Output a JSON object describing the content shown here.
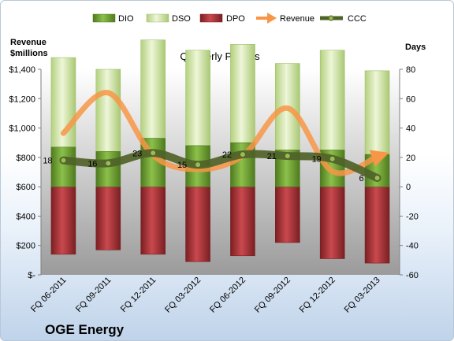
{
  "company": "OGE Energy",
  "chart_data": {
    "type": "bar",
    "subtitle": "Quarterly Periods",
    "categories": [
      "FQ 06-2011",
      "FQ 09-2011",
      "FQ 12-2011",
      "FQ 03-2012",
      "FQ 06-2012",
      "FQ 09-2012",
      "FQ 12-2012",
      "FQ 03-2013"
    ],
    "left_axis": {
      "title_line1": "Revenue",
      "title_line2": "$millions",
      "range": [
        0,
        1400
      ],
      "tick_values": [
        0,
        200,
        400,
        600,
        800,
        1000,
        1200,
        1400
      ],
      "tick_labels": [
        "$-",
        "$200",
        "$400",
        "$600",
        "$800",
        "$1,000",
        "$1,200",
        "$1,400"
      ]
    },
    "right_axis": {
      "title": "Days",
      "range": [
        -60,
        80
      ],
      "tick_values": [
        -60,
        -40,
        -20,
        0,
        20,
        40,
        60,
        80
      ],
      "tick_labels": [
        "-60",
        "-40",
        "-20",
        "0",
        "20",
        "40",
        "60",
        "80"
      ]
    },
    "legend": {
      "position": "top",
      "entries": [
        {
          "label": "DIO",
          "color": "#77a83a"
        },
        {
          "label": "DSO",
          "color": "#d5e8a6"
        },
        {
          "label": "DPO",
          "color": "#b23a3e"
        },
        {
          "label": "Revenue",
          "color": "#f79646"
        },
        {
          "label": "CCC",
          "color": "#4f6228"
        }
      ]
    },
    "series": [
      {
        "name": "DIO",
        "axis": "right",
        "values": [
          27,
          24,
          33,
          28,
          30,
          25,
          25,
          22
        ]
      },
      {
        "name": "DSO",
        "axis": "right",
        "values": [
          61,
          56,
          67,
          65,
          67,
          59,
          68,
          57
        ]
      },
      {
        "name": "DPO",
        "axis": "right",
        "values": [
          -46,
          -43,
          -46,
          -51,
          -47,
          -38,
          -49,
          -52
        ]
      },
      {
        "name": "Revenue",
        "axis": "left",
        "values": [
          965,
          1240,
          815,
          718,
          810,
          1135,
          705,
          805
        ]
      },
      {
        "name": "CCC",
        "axis": "right",
        "values": [
          18,
          16,
          23,
          15,
          22,
          21,
          19,
          6
        ]
      }
    ],
    "ccc_labels": [
      "18",
      "16",
      "23",
      "15",
      "22",
      "21",
      "19",
      "6"
    ],
    "colors": {
      "plot_bg_top": "#ffffff",
      "plot_bg_bottom": "#9b9b9b",
      "dio": "#77a83a",
      "dio_dark": "#4f7a1f",
      "dso": "#d5e8a6",
      "dso_dark": "#9fc06a",
      "dpo": "#b23a3e",
      "dpo_dark": "#7a1f22",
      "revenue": "#f79646",
      "ccc": "#4f6228",
      "ccc_marker": "#9bbb59"
    }
  }
}
